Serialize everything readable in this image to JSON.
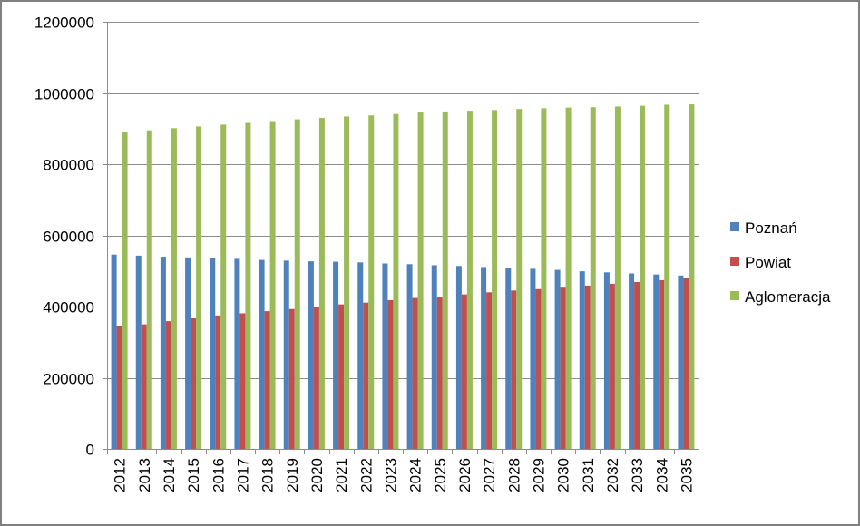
{
  "chart_data": {
    "type": "bar",
    "categories": [
      "2012",
      "2013",
      "2014",
      "2015",
      "2016",
      "2017",
      "2018",
      "2019",
      "2020",
      "2021",
      "2022",
      "2023",
      "2024",
      "2025",
      "2026",
      "2027",
      "2028",
      "2029",
      "2030",
      "2031",
      "2032",
      "2033",
      "2034",
      "2035"
    ],
    "series": [
      {
        "name": "Poznań",
        "color": "#4f81bd",
        "values": [
          546000,
          543000,
          540000,
          538000,
          537000,
          534000,
          531000,
          529000,
          527000,
          526000,
          524000,
          521000,
          519000,
          516000,
          514000,
          511000,
          508000,
          506000,
          503000,
          499000,
          496000,
          493000,
          490000,
          487000
        ]
      },
      {
        "name": "Powiat",
        "color": "#c0504d",
        "values": [
          344000,
          350000,
          359000,
          367000,
          375000,
          381000,
          387000,
          393000,
          400000,
          406000,
          411000,
          418000,
          424000,
          428000,
          434000,
          440000,
          445000,
          449000,
          453000,
          459000,
          464000,
          469000,
          474000,
          479000
        ]
      },
      {
        "name": "Aglomeracja",
        "color": "#9bbb59",
        "values": [
          890000,
          895000,
          901000,
          906000,
          911000,
          916000,
          921000,
          926000,
          930000,
          934000,
          937000,
          941000,
          945000,
          948000,
          950000,
          952000,
          955000,
          957000,
          959000,
          960000,
          962000,
          964000,
          967000,
          968000
        ]
      }
    ],
    "ylim": [
      0,
      1200000
    ],
    "yticks": [
      0,
      200000,
      400000,
      600000,
      800000,
      1000000,
      1200000
    ],
    "ytick_labels": [
      "0",
      "200000",
      "400000",
      "600000",
      "800000",
      "1000000",
      "1200000"
    ],
    "grid": "horizontal",
    "legend_position": "right"
  }
}
